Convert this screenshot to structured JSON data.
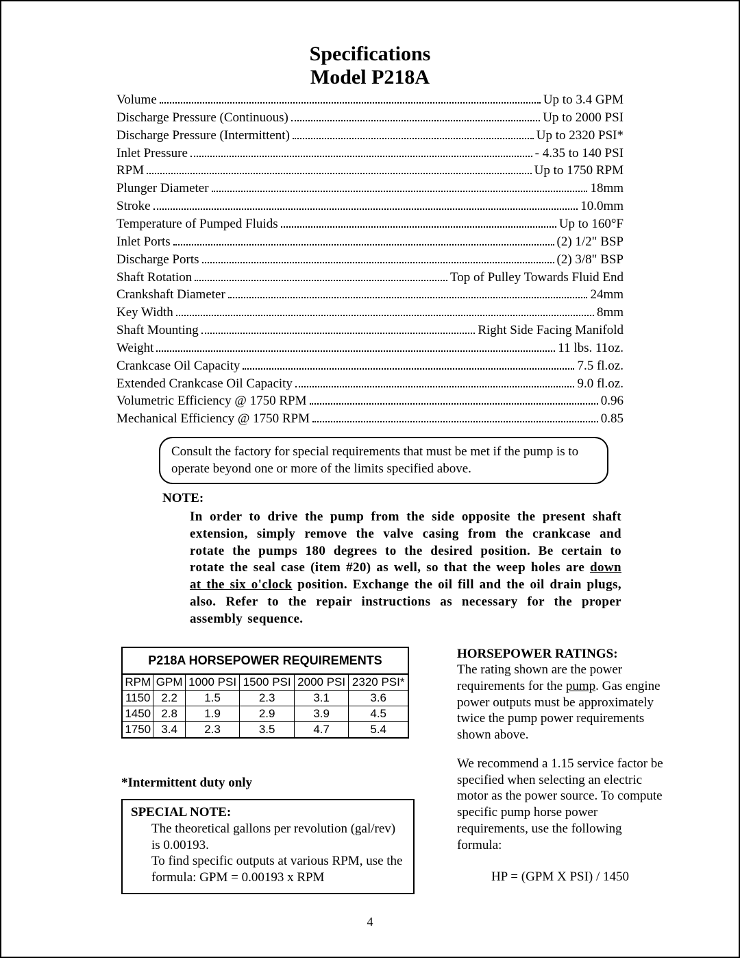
{
  "title1": "Specifications",
  "title2": "Model P218A",
  "specs": [
    {
      "label": "Volume",
      "value": "Up to 3.4 GPM"
    },
    {
      "label": "Discharge Pressure (Continuous)",
      "value": "Up to 2000 PSI"
    },
    {
      "label": "Discharge Pressure (Intermittent)",
      "value": "Up to 2320 PSI*"
    },
    {
      "label": "Inlet Pressure",
      "value": "- 4.35 to 140 PSI"
    },
    {
      "label": "RPM",
      "value": "Up to 1750 RPM"
    },
    {
      "label": "Plunger Diameter",
      "value": "18mm"
    },
    {
      "label": "Stroke",
      "value": "10.0mm"
    },
    {
      "label": "Temperature of Pumped Fluids",
      "value": "Up to 160°F"
    },
    {
      "label": "Inlet Ports",
      "value": "(2) 1/2\" BSP"
    },
    {
      "label": "Discharge Ports",
      "value": "(2) 3/8\" BSP"
    },
    {
      "label": "Shaft Rotation",
      "value": "Top of Pulley Towards Fluid End"
    },
    {
      "label": "Crankshaft Diameter",
      "value": "24mm"
    },
    {
      "label": "Key Width",
      "value": "8mm"
    },
    {
      "label": "Shaft Mounting",
      "value": "Right Side Facing Manifold"
    },
    {
      "label": "Weight",
      "value": "11 lbs. 11oz."
    },
    {
      "label": "Crankcase Oil Capacity",
      "value": "7.5 fl.oz."
    },
    {
      "label": "Extended Crankcase Oil Capacity",
      "value": "9.0 fl.oz."
    },
    {
      "label": "Volumetric Efficiency @ 1750 RPM",
      "value": "0.96"
    },
    {
      "label": "Mechanical Efficiency @ 1750 RPM",
      "value": "0.85"
    }
  ],
  "callout_text": "Consult the factory for special requirements that must be met if the pump is to operate beyond one or more of the limits specified above.",
  "note_heading": "NOTE:",
  "note_body_pre": "In order to drive the pump from the side opposite the present shaft extension, simply remove the valve casing from the crankcase and rotate the pumps 180 degrees to the desired position. Be certain to rotate the seal case (item #20) as well, so that the weep holes are ",
  "note_body_underline": "down at the six o'clock",
  "note_body_post": " position.  Exchange the oil fill and the oil drain plugs, also.  Refer to the repair instructions as necessary for the proper assembly sequence.",
  "hp_table": {
    "title": "P218A HORSEPOWER REQUIREMENTS",
    "columns": [
      "RPM",
      "GPM",
      "1000 PSI",
      "1500 PSI",
      "2000 PSI",
      "2320 PSI*"
    ],
    "rows": [
      [
        "1150",
        "2.2",
        "1.5",
        "2.3",
        "3.1",
        "3.6"
      ],
      [
        "1450",
        "2.8",
        "1.9",
        "2.9",
        "3.9",
        "4.5"
      ],
      [
        "1750",
        "3.4",
        "2.3",
        "3.5",
        "4.7",
        "5.4"
      ]
    ]
  },
  "intermittent_note": "*Intermittent duty only",
  "special_note": {
    "heading": "SPECIAL NOTE:",
    "line1": "The theoretical gallons per revolution (gal/rev) is 0.00193.",
    "line2": "To find specific outputs at various RPM, use the formula: GPM = 0.00193 x RPM"
  },
  "hp_ratings": {
    "heading": "HORSEPOWER RATINGS:",
    "p1a": "The rating shown are the power requirements for the ",
    "p1u": "pump",
    "p1b": ".  Gas engine power outputs must be approximately twice the pump power requirements shown above.",
    "p2": "We recommend a 1.15 service factor be specified when selecting an electric motor as the power source.  To compute specific pump horse power requirements, use the following formula:",
    "formula": "HP = (GPM X PSI) / 1450"
  },
  "page_number": "4"
}
